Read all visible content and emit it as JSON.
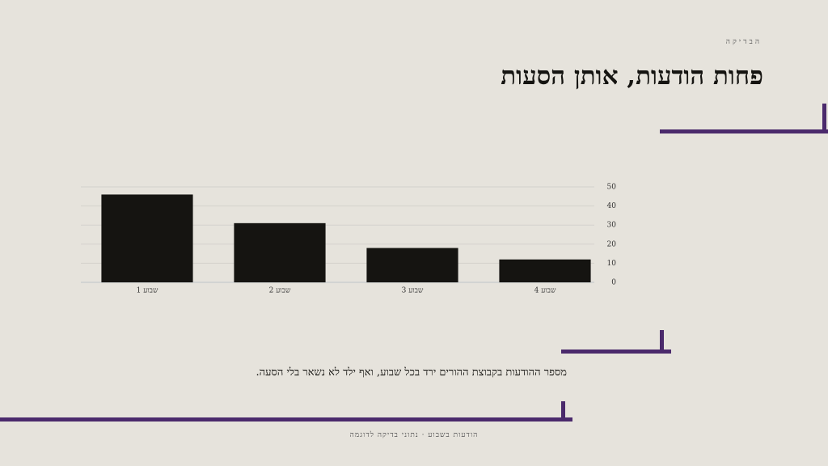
{
  "eyebrow": "הבדיקה",
  "title": "פחות הודעות, אותן הסעות",
  "caption": "מספר ההודעות בקבוצת ההורים ירד בכל שבוע, ואף ילד לא נשאר בלי הסעה.",
  "footer": "הודעות בשבוע · נתוני בדיקה לדוגמה",
  "chart_data": {
    "type": "bar",
    "categories": [
      "שבוע 1",
      "שבוע 2",
      "שבוע 3",
      "שבוע 4"
    ],
    "values": [
      46,
      31,
      18,
      12
    ],
    "color": "#151411",
    "ylim": [
      0,
      50
    ],
    "yticks": [
      0,
      10,
      20,
      30,
      40,
      50
    ],
    "grid": true
  }
}
